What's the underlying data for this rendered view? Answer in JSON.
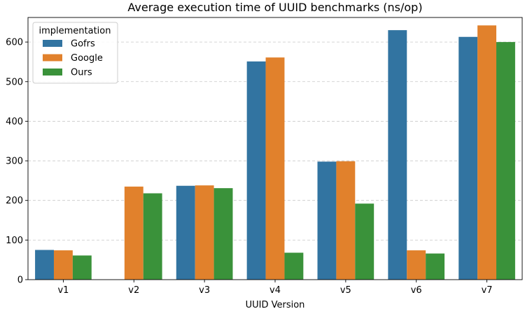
{
  "chart_data": {
    "type": "bar",
    "title": "Average execution time of UUID benchmarks (ns/op)",
    "xlabel": "UUID Version",
    "ylabel": "",
    "categories": [
      "v1",
      "v2",
      "v3",
      "v4",
      "v5",
      "v6",
      "v7"
    ],
    "series": [
      {
        "name": "Gofrs",
        "color": "#3274a1",
        "values": [
          75,
          null,
          237,
          551,
          298,
          630,
          613
        ]
      },
      {
        "name": "Google",
        "color": "#e1812c",
        "values": [
          74,
          235,
          238,
          561,
          299,
          74,
          642
        ]
      },
      {
        "name": "Ours",
        "color": "#3a923a",
        "values": [
          61,
          218,
          231,
          68,
          192,
          66,
          600
        ]
      }
    ],
    "ylim": [
      0,
      662
    ],
    "yticks": [
      0,
      100,
      200,
      300,
      400,
      500,
      600
    ],
    "grid": true,
    "legend": {
      "title": "implementation",
      "placement": "top-left"
    }
  }
}
